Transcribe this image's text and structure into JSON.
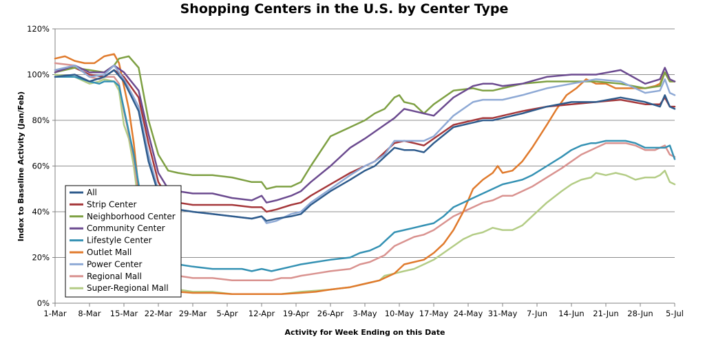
{
  "chart_data": {
    "type": "line",
    "title": "Shopping Centers in the U.S. by Center Type",
    "xlabel": "Activity for Week Ending on this Date",
    "ylabel": "Index to Baseline Activity (Jan/Feb)",
    "ylim": [
      0,
      120
    ],
    "yticks": [
      "0%",
      "20%",
      "40%",
      "60%",
      "80%",
      "100%",
      "120%"
    ],
    "x_tick_labels": [
      "1-Mar",
      "8-Mar",
      "15-Mar",
      "22-Mar",
      "29-Mar",
      "5-Apr",
      "12-Apr",
      "19-Apr",
      "26-Apr",
      "3-May",
      "10-May",
      "17-May",
      "24-May",
      "31-May",
      "7-Jun",
      "14-Jun",
      "21-Jun",
      "28-Jun",
      "5-Jul"
    ],
    "x_unit": "day index from 1-Mar",
    "xlim": [
      0,
      126
    ],
    "grid": "horizontal",
    "legend_position": "lower-left",
    "series": [
      {
        "name": "All",
        "color": "#2E5B8C",
        "width": 2.5,
        "x": [
          0,
          4,
          7,
          10,
          12,
          14,
          17,
          19,
          21,
          23,
          25,
          28,
          32,
          36,
          40,
          42,
          43,
          45,
          48,
          50,
          52,
          56,
          60,
          63,
          65,
          67,
          69,
          71,
          73,
          75,
          77,
          81,
          85,
          87,
          89,
          91,
          95,
          100,
          105,
          110,
          115,
          120,
          123,
          124,
          125,
          126
        ],
        "y": [
          99,
          100,
          97,
          99,
          102,
          97,
          84,
          62,
          48,
          43,
          41,
          40,
          39,
          38,
          37,
          38,
          36,
          37,
          38,
          39,
          43,
          49,
          54,
          58,
          60,
          64,
          68,
          67,
          67,
          66,
          70,
          77,
          79,
          80,
          80,
          81,
          83,
          86,
          88,
          88,
          90,
          88,
          86,
          91,
          86,
          85
        ]
      },
      {
        "name": "Strip Center",
        "color": "#A5373A",
        "width": 2.5,
        "x": [
          0,
          4,
          7,
          10,
          12,
          14,
          17,
          19,
          21,
          23,
          25,
          28,
          32,
          36,
          40,
          42,
          43,
          45,
          48,
          50,
          52,
          56,
          60,
          63,
          65,
          67,
          69,
          71,
          73,
          75,
          77,
          81,
          85,
          87,
          89,
          91,
          95,
          100,
          105,
          110,
          115,
          120,
          123,
          124,
          125,
          126
        ],
        "y": [
          102,
          103,
          100,
          99,
          102,
          99,
          90,
          70,
          53,
          46,
          44,
          43,
          43,
          43,
          42,
          42,
          40,
          41,
          43,
          44,
          47,
          52,
          57,
          60,
          62,
          66,
          70,
          71,
          70,
          69,
          72,
          78,
          80,
          81,
          81,
          82,
          84,
          86,
          87,
          88,
          89,
          87,
          87,
          90,
          86,
          86
        ]
      },
      {
        "name": "Neighborhood Center",
        "color": "#7EA043",
        "width": 2.5,
        "x": [
          0,
          4,
          7,
          10,
          12,
          13,
          15,
          17,
          19,
          21,
          23,
          25,
          28,
          32,
          36,
          40,
          42,
          43,
          45,
          48,
          50,
          52,
          56,
          60,
          63,
          65,
          67,
          69,
          70,
          71,
          73,
          75,
          77,
          81,
          85,
          87,
          89,
          91,
          95,
          100,
          105,
          110,
          115,
          120,
          123,
          124,
          125,
          126
        ],
        "y": [
          101,
          103,
          102,
          101,
          104,
          107,
          108,
          103,
          80,
          65,
          58,
          57,
          56,
          56,
          55,
          53,
          53,
          50,
          51,
          51,
          53,
          60,
          73,
          77,
          80,
          83,
          85,
          90,
          91,
          88,
          87,
          83,
          87,
          93,
          94,
          93,
          93,
          94,
          96,
          97,
          97,
          97,
          96,
          94,
          95,
          101,
          97,
          97
        ]
      },
      {
        "name": "Community Center",
        "color": "#6B4A8F",
        "width": 2.5,
        "x": [
          0,
          4,
          7,
          10,
          12,
          14,
          17,
          19,
          21,
          23,
          25,
          28,
          32,
          36,
          40,
          42,
          43,
          45,
          48,
          50,
          52,
          56,
          60,
          63,
          65,
          67,
          69,
          71,
          73,
          75,
          77,
          81,
          85,
          87,
          89,
          91,
          95,
          100,
          105,
          110,
          115,
          120,
          123,
          124,
          125,
          126
        ],
        "y": [
          101,
          104,
          101,
          101,
          104,
          101,
          93,
          74,
          57,
          50,
          49,
          48,
          48,
          46,
          45,
          47,
          44,
          45,
          47,
          49,
          53,
          60,
          68,
          72,
          75,
          78,
          81,
          85,
          84,
          83,
          82,
          90,
          95,
          96,
          96,
          95,
          96,
          99,
          100,
          100,
          102,
          96,
          98,
          103,
          98,
          97
        ]
      },
      {
        "name": "Lifestyle Center",
        "color": "#3491B3",
        "width": 2.5,
        "x": [
          0,
          4,
          7,
          9,
          10,
          12,
          13,
          14,
          16,
          17,
          18,
          19,
          20,
          21,
          25,
          28,
          32,
          36,
          38,
          40,
          42,
          44,
          46,
          48,
          50,
          53,
          56,
          60,
          62,
          64,
          66,
          67,
          69,
          71,
          73,
          75,
          77,
          79,
          81,
          83,
          85,
          87,
          89,
          91,
          93,
          95,
          97,
          100,
          103,
          105,
          107,
          109,
          110,
          112,
          114,
          116,
          118,
          120,
          122,
          123,
          124,
          125,
          126
        ],
        "y": [
          99,
          99,
          97,
          96,
          97,
          97,
          95,
          85,
          65,
          52,
          35,
          25,
          20,
          18,
          17,
          16,
          15,
          15,
          15,
          14,
          15,
          14,
          15,
          16,
          17,
          18,
          19,
          20,
          22,
          23,
          25,
          27,
          31,
          32,
          33,
          34,
          35,
          38,
          42,
          44,
          46,
          48,
          50,
          52,
          53,
          54,
          56,
          60,
          64,
          67,
          69,
          70,
          70,
          71,
          71,
          71,
          70,
          68,
          68,
          68,
          68,
          69,
          63
        ]
      },
      {
        "name": "Outlet Mall",
        "color": "#E07A2C",
        "width": 2.5,
        "x": [
          0,
          2,
          4,
          6,
          8,
          10,
          12,
          13,
          15,
          16,
          17,
          18,
          19,
          20,
          21,
          25,
          28,
          32,
          36,
          40,
          43,
          46,
          50,
          53,
          56,
          60,
          62,
          64,
          66,
          67,
          69,
          71,
          73,
          75,
          77,
          79,
          81,
          83,
          85,
          87,
          89,
          90,
          91,
          93,
          95,
          97,
          100,
          102,
          104,
          106,
          108,
          110,
          112,
          114,
          116,
          118,
          120,
          122,
          123,
          124,
          125,
          126
        ],
        "y": [
          107,
          108,
          106,
          105,
          105,
          108,
          109,
          105,
          85,
          70,
          50,
          25,
          12,
          8,
          6,
          5,
          4.5,
          4.5,
          4,
          4,
          4,
          4,
          4.5,
          5,
          6,
          7,
          8,
          9,
          10,
          11,
          13,
          17,
          18,
          19,
          22,
          26,
          32,
          40,
          50,
          54,
          57,
          60,
          57,
          58,
          62,
          68,
          78,
          85,
          91,
          94,
          98,
          96,
          96,
          94,
          94,
          94,
          94,
          95,
          96,
          101,
          97,
          97
        ]
      },
      {
        "name": "Power Center",
        "color": "#8EA9D5",
        "width": 2.5,
        "x": [
          0,
          4,
          7,
          10,
          12,
          14,
          17,
          19,
          21,
          23,
          25,
          28,
          32,
          36,
          40,
          42,
          43,
          45,
          48,
          50,
          52,
          56,
          60,
          63,
          65,
          67,
          69,
          71,
          73,
          75,
          77,
          81,
          85,
          87,
          89,
          91,
          95,
          100,
          105,
          110,
          115,
          120,
          123,
          124,
          125,
          126
        ],
        "y": [
          102,
          104,
          99,
          100,
          104,
          98,
          86,
          65,
          49,
          43,
          41,
          40,
          39,
          38,
          37,
          38,
          35,
          36,
          39,
          40,
          44,
          50,
          56,
          60,
          62,
          65,
          71,
          71,
          71,
          71,
          73,
          82,
          88,
          89,
          89,
          89,
          91,
          94,
          96,
          98,
          97,
          92,
          93,
          98,
          92,
          91
        ]
      },
      {
        "name": "Regional Mall",
        "color": "#D9928F",
        "width": 2.5,
        "x": [
          0,
          4,
          7,
          9,
          10,
          12,
          13,
          14,
          16,
          17,
          18,
          19,
          20,
          21,
          25,
          28,
          32,
          36,
          38,
          40,
          42,
          44,
          46,
          48,
          50,
          53,
          56,
          60,
          62,
          64,
          66,
          67,
          69,
          71,
          73,
          75,
          77,
          79,
          81,
          83,
          85,
          87,
          89,
          91,
          93,
          95,
          97,
          100,
          103,
          105,
          107,
          109,
          110,
          112,
          114,
          116,
          118,
          120,
          122,
          123,
          124,
          125,
          126
        ],
        "y": [
          105,
          104,
          99,
          98,
          99,
          99,
          96,
          84,
          64,
          48,
          28,
          18,
          14,
          13,
          12,
          11,
          11,
          10,
          10,
          10,
          10,
          10,
          11,
          11,
          12,
          13,
          14,
          15,
          17,
          18,
          20,
          21,
          25,
          27,
          29,
          30,
          32,
          35,
          38,
          40,
          42,
          44,
          45,
          47,
          47,
          49,
          51,
          55,
          59,
          62,
          65,
          67,
          68,
          70,
          70,
          70,
          69,
          67,
          67,
          68,
          69,
          65,
          64
        ]
      },
      {
        "name": "Super-Regional Mall",
        "color": "#B3CC85",
        "width": 2.5,
        "x": [
          0,
          4,
          7,
          9,
          10,
          12,
          13,
          14,
          15,
          16,
          17,
          18,
          19,
          20,
          21,
          25,
          28,
          32,
          36,
          38,
          40,
          42,
          44,
          46,
          48,
          50,
          53,
          56,
          60,
          62,
          64,
          66,
          67,
          69,
          71,
          73,
          75,
          77,
          79,
          81,
          83,
          85,
          87,
          89,
          91,
          93,
          95,
          97,
          100,
          103,
          105,
          107,
          109,
          110,
          112,
          114,
          116,
          118,
          120,
          122,
          123,
          124,
          125,
          126
        ],
        "y": [
          100,
          99,
          96,
          97,
          98,
          97,
          93,
          78,
          72,
          60,
          43,
          28,
          15,
          10,
          7,
          6,
          5,
          5,
          4,
          4,
          4,
          4,
          4,
          4,
          4.5,
          5,
          5.5,
          6,
          7,
          8,
          9,
          10,
          12,
          13,
          14,
          15,
          17,
          19,
          22,
          25,
          28,
          30,
          31,
          33,
          32,
          32,
          34,
          38,
          44,
          49,
          52,
          54,
          55,
          57,
          56,
          57,
          56,
          54,
          55,
          55,
          56,
          58,
          53,
          52
        ]
      }
    ]
  }
}
